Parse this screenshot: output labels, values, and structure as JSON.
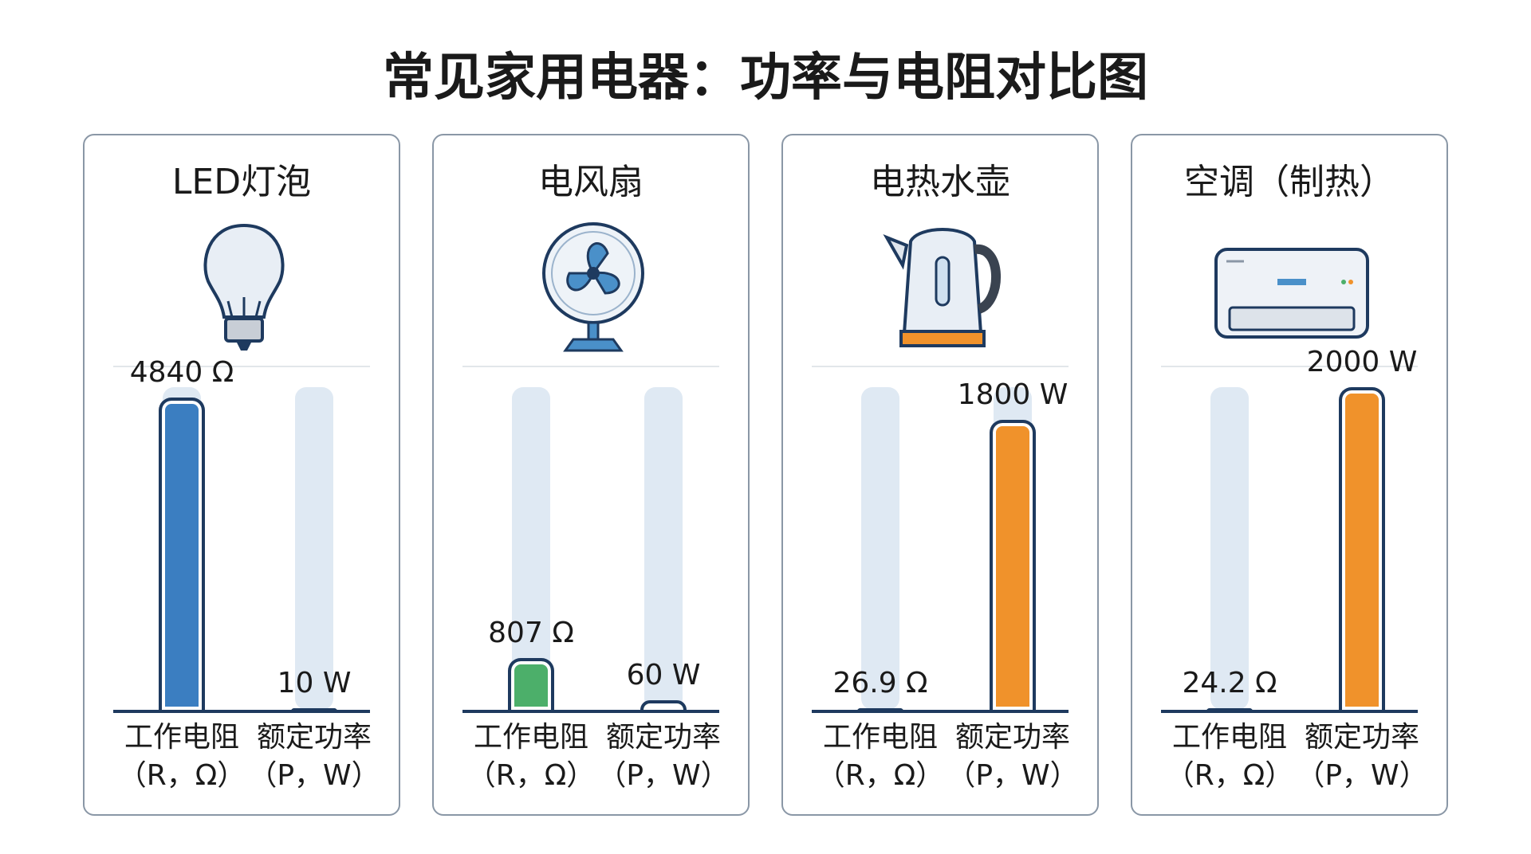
{
  "title": "常见家用电器：功率与电阻对比图",
  "chart_data": [
    {
      "type": "bar",
      "title": "LED灯泡",
      "categories": [
        "工作电阻\n（R，Ω）",
        "额定功率\n（P，W）"
      ],
      "values": [
        4840,
        10
      ],
      "value_labels": [
        "4840 Ω",
        "10 W"
      ],
      "colors": [
        "#3b7ec1",
        "#6db552"
      ],
      "value_axes": [
        "y",
        "y2"
      ],
      "ylim": [
        0,
        5000
      ],
      "y2lim": [
        0,
        2000
      ]
    },
    {
      "type": "bar",
      "title": "电风扇",
      "categories": [
        "工作电阻\n（R，Ω）",
        "额定功率\n（P，W）"
      ],
      "values": [
        807,
        60
      ],
      "value_labels": [
        "807 Ω",
        "60 W"
      ],
      "colors": [
        "#4caf6a",
        "#7ab851"
      ],
      "value_axes": [
        "y",
        "y2"
      ],
      "ylim": [
        0,
        5000
      ],
      "y2lim": [
        0,
        2000
      ]
    },
    {
      "type": "bar",
      "title": "电热水壶",
      "categories": [
        "工作电阻\n（R，Ω）",
        "额定功率\n（P，W）"
      ],
      "values": [
        26.9,
        1800
      ],
      "value_labels": [
        "26.9 Ω",
        "1800 W"
      ],
      "colors": [
        "#4caf6a",
        "#f0922b"
      ],
      "value_axes": [
        "y",
        "y2"
      ],
      "ylim": [
        0,
        5000
      ],
      "y2lim": [
        0,
        2000
      ]
    },
    {
      "type": "bar",
      "title": "空调（制热）",
      "categories": [
        "工作电阻\n（R，Ω）",
        "额定功率\n（P，W）"
      ],
      "values": [
        24.2,
        2000
      ],
      "value_labels": [
        "24.2 Ω",
        "2000 W"
      ],
      "colors": [
        "#4caf6a",
        "#f0922b"
      ],
      "value_axes": [
        "y",
        "y2"
      ],
      "ylim": [
        0,
        5000
      ],
      "y2lim": [
        0,
        2000
      ]
    }
  ]
}
